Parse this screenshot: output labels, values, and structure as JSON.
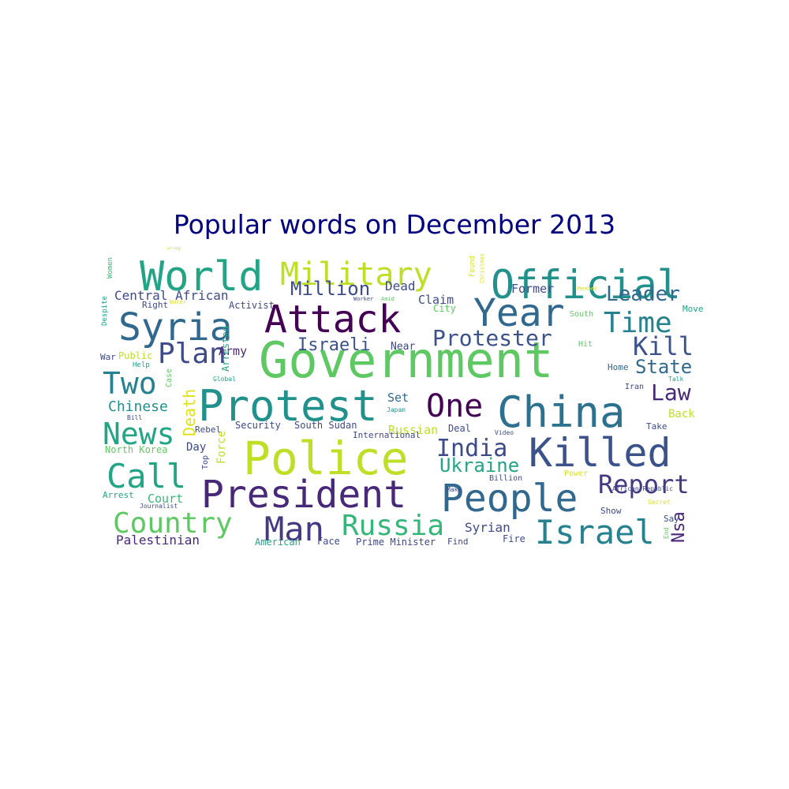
{
  "title": "Popular words on December 2013",
  "palette": {
    "dark_purple": "#440154",
    "indigo": "#3b528b",
    "steel": "#31688e",
    "teal": "#21918c",
    "green": "#35b779",
    "lime": "#5ec962",
    "yellow": "#bddf26",
    "gold": "#dde318",
    "deep": "#482878",
    "slate": "#414487"
  },
  "words": [
    {
      "text": "Government",
      "color": "#5ec962"
    },
    {
      "text": "Police",
      "color": "#bddf26"
    },
    {
      "text": "Protest",
      "color": "#21918c"
    },
    {
      "text": "President",
      "color": "#482878"
    },
    {
      "text": "China",
      "color": "#2c728e"
    },
    {
      "text": "Attack",
      "color": "#440154"
    },
    {
      "text": "Official",
      "color": "#21918c"
    },
    {
      "text": "World",
      "color": "#21a585"
    },
    {
      "text": "Killed",
      "color": "#3b528b"
    },
    {
      "text": "People",
      "color": "#31688e"
    },
    {
      "text": "Military",
      "color": "#bddf26"
    },
    {
      "text": "Year",
      "color": "#31688e"
    },
    {
      "text": "Syria",
      "color": "#31688e"
    },
    {
      "text": "Man",
      "color": "#443983"
    },
    {
      "text": "Israel",
      "color": "#26828e"
    },
    {
      "text": "Country",
      "color": "#5ec962"
    },
    {
      "text": "Russia",
      "color": "#35b779"
    },
    {
      "text": "Call",
      "color": "#21a585"
    },
    {
      "text": "News",
      "color": "#21a585"
    },
    {
      "text": "One",
      "color": "#440154"
    },
    {
      "text": "Two",
      "color": "#26828e"
    },
    {
      "text": "Plan",
      "color": "#3e4a89"
    },
    {
      "text": "Report",
      "color": "#443983"
    },
    {
      "text": "Time",
      "color": "#26828e"
    },
    {
      "text": "Kill",
      "color": "#3b528b"
    },
    {
      "text": "Leader",
      "color": "#31688e"
    },
    {
      "text": "Protester",
      "color": "#3b528b"
    },
    {
      "text": "India",
      "color": "#3e4a89"
    },
    {
      "text": "Law",
      "color": "#482878"
    },
    {
      "text": "State",
      "color": "#31688e"
    },
    {
      "text": "Ukraine",
      "color": "#21a585"
    },
    {
      "text": "Million",
      "color": "#3e4a89"
    },
    {
      "text": "Israeli",
      "color": "#3b528b"
    },
    {
      "text": "Death",
      "color": "#dde318"
    },
    {
      "text": "Nsa",
      "color": "#482878"
    },
    {
      "text": "Chinese",
      "color": "#21918c"
    },
    {
      "text": "Syrian",
      "color": "#3e4a89"
    },
    {
      "text": "Central African",
      "color": "#3e4a89"
    },
    {
      "text": "Palestinian",
      "color": "#482878"
    },
    {
      "text": "Dead",
      "color": "#3e4a89"
    },
    {
      "text": "Claim",
      "color": "#3e4a89"
    },
    {
      "text": "Former",
      "color": "#3e4a89"
    },
    {
      "text": "Army",
      "color": "#482878"
    },
    {
      "text": "Court",
      "color": "#35b779"
    },
    {
      "text": "Russian",
      "color": "#bddf26"
    },
    {
      "text": "Set",
      "color": "#31688e"
    },
    {
      "text": "Back",
      "color": "#bddf26"
    },
    {
      "text": "Day",
      "color": "#3e4a89"
    },
    {
      "text": "Force",
      "color": "#bddf26"
    },
    {
      "text": "Near",
      "color": "#3e4a89"
    },
    {
      "text": "Billion",
      "color": "#3e4a89"
    },
    {
      "text": "Prime Minister",
      "color": "#3e4a89"
    },
    {
      "text": "Fire",
      "color": "#3e4a89"
    },
    {
      "text": "South Sudan",
      "color": "#3e4a89"
    },
    {
      "text": "Security",
      "color": "#3e4a89"
    },
    {
      "text": "Rebel",
      "color": "#3e4a89"
    },
    {
      "text": "Face",
      "color": "#3e4a89"
    },
    {
      "text": "Find",
      "color": "#3e4a89"
    },
    {
      "text": "American",
      "color": "#21a585"
    },
    {
      "text": "Deal",
      "color": "#3e4a89"
    },
    {
      "text": "Take",
      "color": "#3e4a89"
    },
    {
      "text": "Show",
      "color": "#3e4a89"
    },
    {
      "text": "Home",
      "color": "#31688e"
    },
    {
      "text": "Iran",
      "color": "#3e4a89"
    },
    {
      "text": "Say",
      "color": "#3e4a89"
    },
    {
      "text": "North Korea",
      "color": "#5ec962"
    },
    {
      "text": "Arrest",
      "color": "#21a585"
    },
    {
      "text": "International",
      "color": "#3e4a89"
    },
    {
      "text": "Activist",
      "color": "#3e4a89"
    },
    {
      "text": "Right",
      "color": "#3e4a89"
    },
    {
      "text": "City",
      "color": "#5ec962"
    },
    {
      "text": "South",
      "color": "#5ec962"
    },
    {
      "text": "Move",
      "color": "#21a585"
    },
    {
      "text": "Arrested",
      "color": "#21a585"
    },
    {
      "text": "Top",
      "color": "#3e4a89"
    },
    {
      "text": "War",
      "color": "#3e4a89"
    },
    {
      "text": "Public",
      "color": "#bddf26"
    },
    {
      "text": "Help",
      "color": "#21a585"
    },
    {
      "text": "Case",
      "color": "#5ec962"
    },
    {
      "text": "Hit",
      "color": "#5ec962"
    },
    {
      "text": "Power",
      "color": "#dde318"
    },
    {
      "text": "Video",
      "color": "#3e4a89"
    },
    {
      "text": "Bill",
      "color": "#3e4a89"
    },
    {
      "text": "Journalist",
      "color": "#3e4a89"
    },
    {
      "text": "Make",
      "color": "#3e4a89"
    },
    {
      "text": "Secret",
      "color": "#dde318"
    },
    {
      "text": "End",
      "color": "#5ec962"
    },
    {
      "text": "Global",
      "color": "#21a585"
    },
    {
      "text": "Japan",
      "color": "#21918c"
    },
    {
      "text": "Talk",
      "color": "#21a585"
    },
    {
      "text": "Worker",
      "color": "#3e4a89"
    },
    {
      "text": "Amid",
      "color": "#5ec962"
    },
    {
      "text": "Water",
      "color": "#dde318"
    },
    {
      "text": "Women",
      "color": "#35b779"
    },
    {
      "text": "Despite",
      "color": "#21a585"
    },
    {
      "text": "Drug",
      "color": "#dde318"
    },
    {
      "text": "Found",
      "color": "#dde318"
    },
    {
      "text": "Christmas",
      "color": "#dde318"
    },
    {
      "text": "Member",
      "color": "#dde318"
    },
    {
      "text": "African Republic",
      "color": "#3e4a89"
    }
  ]
}
